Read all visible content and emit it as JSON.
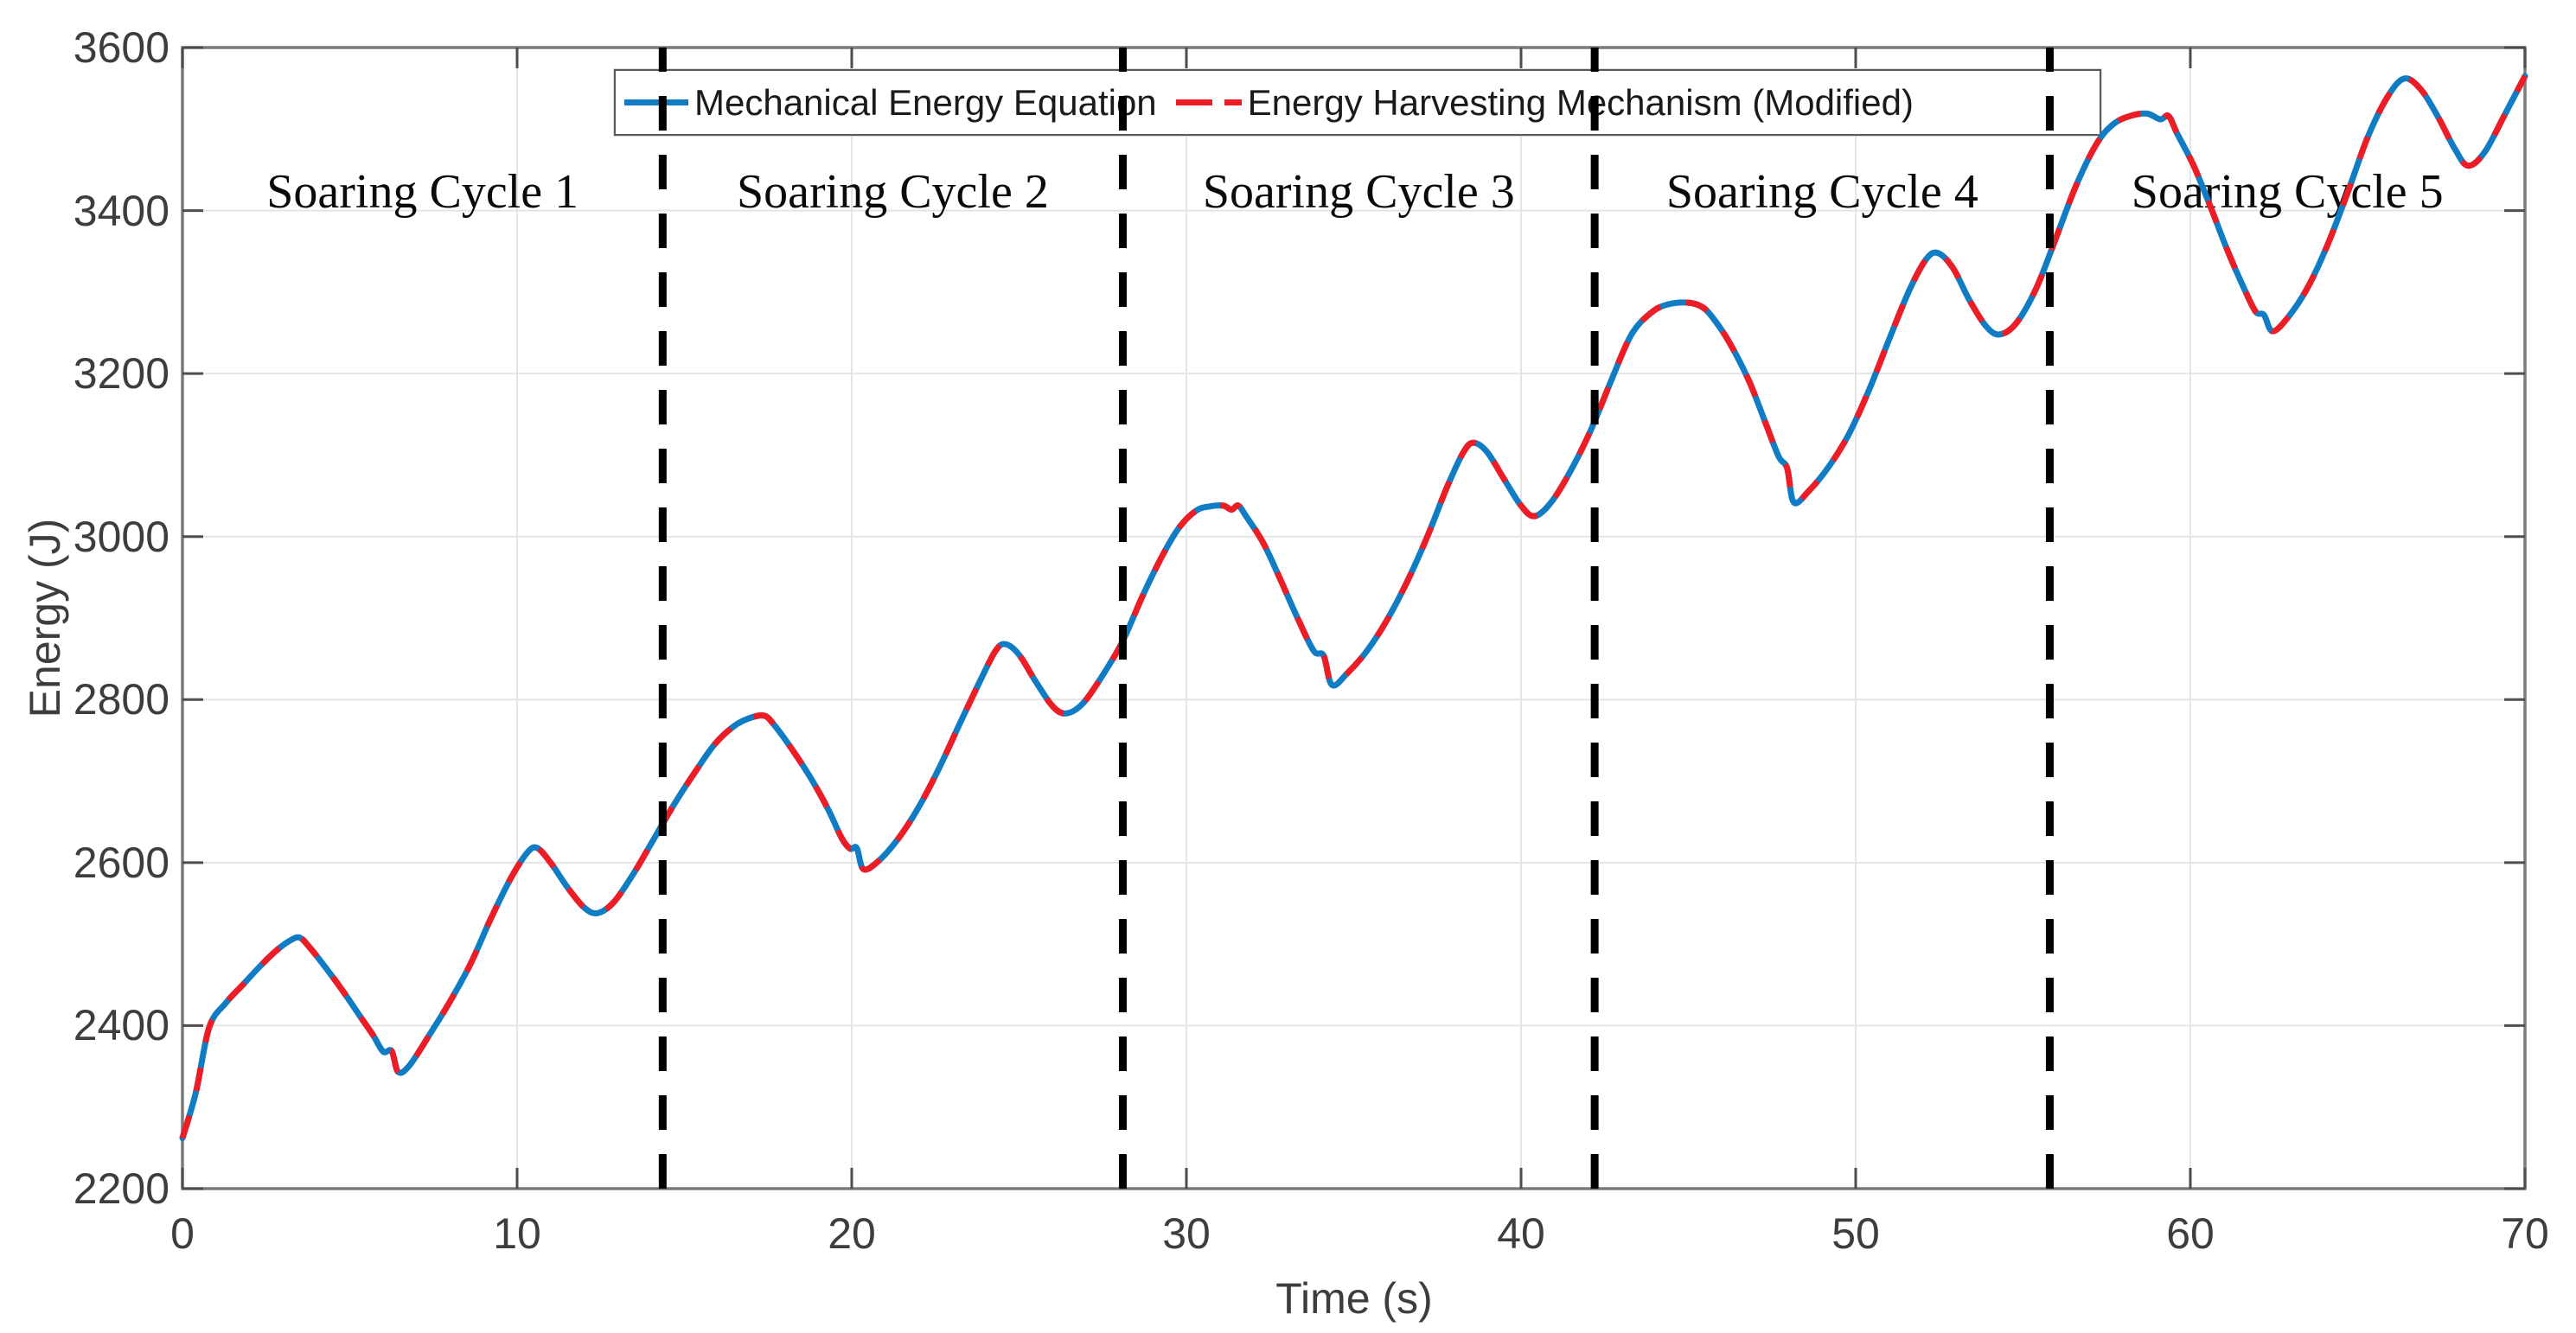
{
  "chart_data": {
    "type": "line",
    "title": "",
    "xlabel": "Time (s)",
    "ylabel": "Energy (J)",
    "xlim": [
      0,
      70
    ],
    "ylim": [
      2200,
      3600
    ],
    "xticks": [
      0,
      10,
      20,
      30,
      40,
      50,
      60,
      70
    ],
    "yticks": [
      2200,
      2400,
      2600,
      2800,
      3000,
      3200,
      3400,
      3600
    ],
    "grid": true,
    "legend_position": "top-center-inside",
    "colors": {
      "series_blue": "#0f7cc4",
      "series_red": "#ee1c24",
      "boundary_black": "#000000",
      "gridline": "#e4e4e4",
      "axis": "#7a7a7a",
      "tick": "#4d4d4d",
      "tick_text": "#3d3d3d",
      "cycle_text": "#0a0a0a"
    },
    "series": [
      {
        "name": "Mechanical Energy Equation",
        "color": "#0f7cc4",
        "line_style": "solid",
        "points": [
          [
            0,
            2262
          ],
          [
            0.4,
            2318
          ],
          [
            0.8,
            2398
          ],
          [
            1.3,
            2428
          ],
          [
            1.8,
            2450
          ],
          [
            2.3,
            2472
          ],
          [
            2.8,
            2492
          ],
          [
            3.2,
            2504
          ],
          [
            3.5,
            2508
          ],
          [
            3.8,
            2496
          ],
          [
            4.3,
            2470
          ],
          [
            4.8,
            2442
          ],
          [
            5.3,
            2412
          ],
          [
            5.7,
            2388
          ],
          [
            6.0,
            2368
          ],
          [
            6.25,
            2369
          ],
          [
            6.45,
            2343
          ],
          [
            6.8,
            2352
          ],
          [
            7.4,
            2390
          ],
          [
            8.0,
            2430
          ],
          [
            8.6,
            2475
          ],
          [
            9.2,
            2530
          ],
          [
            9.8,
            2580
          ],
          [
            10.3,
            2612
          ],
          [
            10.6,
            2618
          ],
          [
            11.0,
            2600
          ],
          [
            11.5,
            2570
          ],
          [
            12.0,
            2545
          ],
          [
            12.4,
            2538
          ],
          [
            12.9,
            2552
          ],
          [
            13.5,
            2588
          ],
          [
            14.1,
            2630
          ],
          [
            14.7,
            2672
          ],
          [
            15.3,
            2710
          ],
          [
            15.9,
            2745
          ],
          [
            16.5,
            2768
          ],
          [
            17.0,
            2778
          ],
          [
            17.4,
            2780
          ],
          [
            17.7,
            2768
          ],
          [
            18.2,
            2740
          ],
          [
            18.8,
            2702
          ],
          [
            19.3,
            2665
          ],
          [
            19.7,
            2630
          ],
          [
            19.95,
            2617
          ],
          [
            20.15,
            2618
          ],
          [
            20.35,
            2592
          ],
          [
            20.8,
            2602
          ],
          [
            21.4,
            2630
          ],
          [
            22.0,
            2668
          ],
          [
            22.6,
            2715
          ],
          [
            23.2,
            2768
          ],
          [
            23.8,
            2820
          ],
          [
            24.3,
            2860
          ],
          [
            24.6,
            2868
          ],
          [
            25.0,
            2855
          ],
          [
            25.5,
            2822
          ],
          [
            26.0,
            2792
          ],
          [
            26.4,
            2783
          ],
          [
            26.9,
            2795
          ],
          [
            27.5,
            2830
          ],
          [
            28.1,
            2872
          ],
          [
            28.7,
            2928
          ],
          [
            29.3,
            2978
          ],
          [
            29.8,
            3012
          ],
          [
            30.3,
            3032
          ],
          [
            30.7,
            3037
          ],
          [
            31.1,
            3038
          ],
          [
            31.35,
            3033
          ],
          [
            31.55,
            3038
          ],
          [
            31.8,
            3024
          ],
          [
            32.3,
            2992
          ],
          [
            32.8,
            2948
          ],
          [
            33.3,
            2902
          ],
          [
            33.8,
            2860
          ],
          [
            34.1,
            2854
          ],
          [
            34.35,
            2818
          ],
          [
            34.8,
            2832
          ],
          [
            35.4,
            2860
          ],
          [
            36.0,
            2898
          ],
          [
            36.6,
            2945
          ],
          [
            37.2,
            3000
          ],
          [
            37.8,
            3062
          ],
          [
            38.3,
            3105
          ],
          [
            38.6,
            3115
          ],
          [
            39.0,
            3103
          ],
          [
            39.5,
            3070
          ],
          [
            40.0,
            3038
          ],
          [
            40.4,
            3025
          ],
          [
            40.9,
            3042
          ],
          [
            41.5,
            3082
          ],
          [
            42.1,
            3132
          ],
          [
            42.7,
            3192
          ],
          [
            43.3,
            3248
          ],
          [
            43.9,
            3275
          ],
          [
            44.4,
            3285
          ],
          [
            45.0,
            3287
          ],
          [
            45.4,
            3282
          ],
          [
            45.7,
            3270
          ],
          [
            46.2,
            3240
          ],
          [
            46.8,
            3192
          ],
          [
            47.3,
            3140
          ],
          [
            47.7,
            3098
          ],
          [
            47.95,
            3084
          ],
          [
            48.15,
            3042
          ],
          [
            48.6,
            3056
          ],
          [
            49.2,
            3086
          ],
          [
            49.8,
            3126
          ],
          [
            50.4,
            3180
          ],
          [
            51.0,
            3242
          ],
          [
            51.6,
            3302
          ],
          [
            52.1,
            3340
          ],
          [
            52.45,
            3348
          ],
          [
            52.9,
            3330
          ],
          [
            53.4,
            3290
          ],
          [
            53.9,
            3258
          ],
          [
            54.3,
            3248
          ],
          [
            54.8,
            3262
          ],
          [
            55.4,
            3305
          ],
          [
            56.0,
            3368
          ],
          [
            56.6,
            3432
          ],
          [
            57.2,
            3482
          ],
          [
            57.7,
            3506
          ],
          [
            58.2,
            3516
          ],
          [
            58.7,
            3519
          ],
          [
            59.1,
            3512
          ],
          [
            59.35,
            3516
          ],
          [
            59.6,
            3495
          ],
          [
            60.1,
            3455
          ],
          [
            60.6,
            3405
          ],
          [
            61.1,
            3352
          ],
          [
            61.6,
            3305
          ],
          [
            61.95,
            3276
          ],
          [
            62.2,
            3272
          ],
          [
            62.45,
            3252
          ],
          [
            62.9,
            3268
          ],
          [
            63.5,
            3305
          ],
          [
            64.1,
            3358
          ],
          [
            64.7,
            3422
          ],
          [
            65.3,
            3490
          ],
          [
            65.9,
            3540
          ],
          [
            66.4,
            3562
          ],
          [
            66.9,
            3548
          ],
          [
            67.4,
            3515
          ],
          [
            67.9,
            3476
          ],
          [
            68.3,
            3455
          ],
          [
            68.8,
            3472
          ],
          [
            69.4,
            3518
          ],
          [
            70,
            3565
          ]
        ]
      },
      {
        "name": "Energy Harvesting Mechanism (Modified)",
        "color": "#ee1c24",
        "line_style": "dashed",
        "points_same_as": 0,
        "note": "This dashed red curve overlaps the blue solid curve exactly for all t in [0,70]"
      }
    ],
    "annotations": {
      "cycle_boundaries_t": [
        14.35,
        28.1,
        42.2,
        55.8
      ],
      "boundary_line_style": "vertical black dashed",
      "cycle_labels": [
        "Soaring Cycle 1",
        "Soaring Cycle 2",
        "Soaring Cycle 3",
        "Soaring Cycle 4",
        "Soaring Cycle 5"
      ]
    }
  }
}
